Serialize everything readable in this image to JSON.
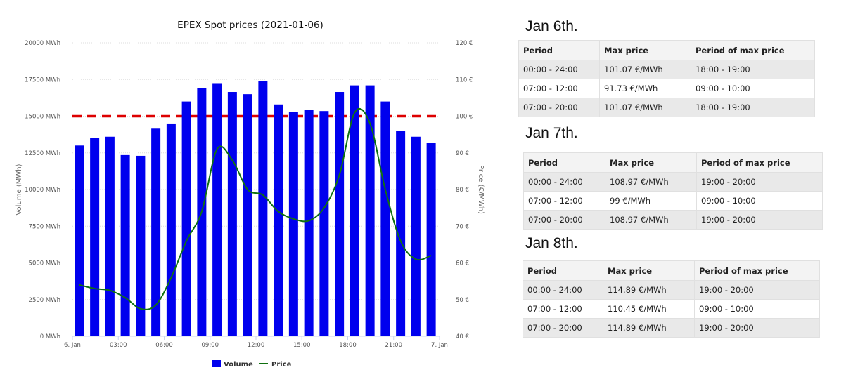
{
  "chart_data": {
    "type": "bar",
    "title": "EPEX Spot prices (2021-01-06)",
    "ylabel": "Volume (MWh)",
    "y2label": "Price (€/MWh)",
    "ylim": [
      0,
      20000
    ],
    "y2lim": [
      40,
      120
    ],
    "y_ticks": [
      "0 MWh",
      "2500 MWh",
      "5000 MWh",
      "7500 MWh",
      "10000 MWh",
      "12500 MWh",
      "15000 MWh",
      "17500 MWh",
      "20000 MWh"
    ],
    "y2_ticks": [
      "40 €",
      "50 €",
      "60 €",
      "70 €",
      "80 €",
      "90 €",
      "100 €",
      "110 €",
      "120 €"
    ],
    "x_ticks": [
      "6. Jan",
      "03:00",
      "06:00",
      "09:00",
      "12:00",
      "15:00",
      "18:00",
      "21:00",
      "7. Jan"
    ],
    "hours": [
      0,
      1,
      2,
      3,
      4,
      5,
      6,
      7,
      8,
      9,
      10,
      11,
      12,
      13,
      14,
      15,
      16,
      17,
      18,
      19,
      20,
      21,
      22,
      23
    ],
    "series": [
      {
        "name": "Volume",
        "type": "bar",
        "axis": "left",
        "color": "#0000ee",
        "values": [
          13000,
          13500,
          13600,
          12350,
          12300,
          14150,
          14500,
          16000,
          16900,
          17250,
          16650,
          16500,
          17400,
          15800,
          15300,
          15450,
          15350,
          16650,
          17100,
          17100,
          16000,
          14000,
          13600,
          13200
        ]
      },
      {
        "name": "Price",
        "type": "line",
        "axis": "right",
        "color": "#107010",
        "values": [
          54,
          53,
          52.5,
          50.5,
          47.5,
          48.5,
          56,
          66,
          74,
          91,
          88,
          80,
          78.5,
          74,
          72,
          71.5,
          75,
          84,
          101,
          98,
          80,
          66,
          61,
          62
        ]
      }
    ],
    "reference_line": {
      "value": 15000,
      "axis": "left",
      "color": "#dd0000",
      "style": "dashed"
    },
    "legend_position": "bottom-center",
    "grid": true
  },
  "tables": [
    {
      "title": "Jan 6th.",
      "headers": [
        "Period",
        "Max price",
        "Period of max price"
      ],
      "rows": [
        [
          "00:00 - 24:00",
          "101.07 €/MWh",
          "18:00 - 19:00"
        ],
        [
          "07:00 - 12:00",
          "91.73 €/MWh",
          "09:00 - 10:00"
        ],
        [
          "07:00 - 20:00",
          "101.07 €/MWh",
          "18:00 - 19:00"
        ]
      ]
    },
    {
      "title": "Jan 7th.",
      "headers": [
        "Period",
        "Max price",
        "Period of max price"
      ],
      "rows": [
        [
          "00:00 - 24:00",
          "108.97 €/MWh",
          "19:00 - 20:00"
        ],
        [
          "07:00 - 12:00",
          "99 €/MWh",
          "09:00 - 10:00"
        ],
        [
          "07:00 - 20:00",
          "108.97 €/MWh",
          "19:00 - 20:00"
        ]
      ]
    },
    {
      "title": "Jan 8th.",
      "headers": [
        "Period",
        "Max price",
        "Period of max price"
      ],
      "rows": [
        [
          "00:00 - 24:00",
          "114.89 €/MWh",
          "19:00 - 20:00"
        ],
        [
          "07:00 - 12:00",
          "110.45 €/MWh",
          "09:00 - 10:00"
        ],
        [
          "07:00 - 20:00",
          "114.89 €/MWh",
          "19:00 - 20:00"
        ]
      ]
    }
  ]
}
